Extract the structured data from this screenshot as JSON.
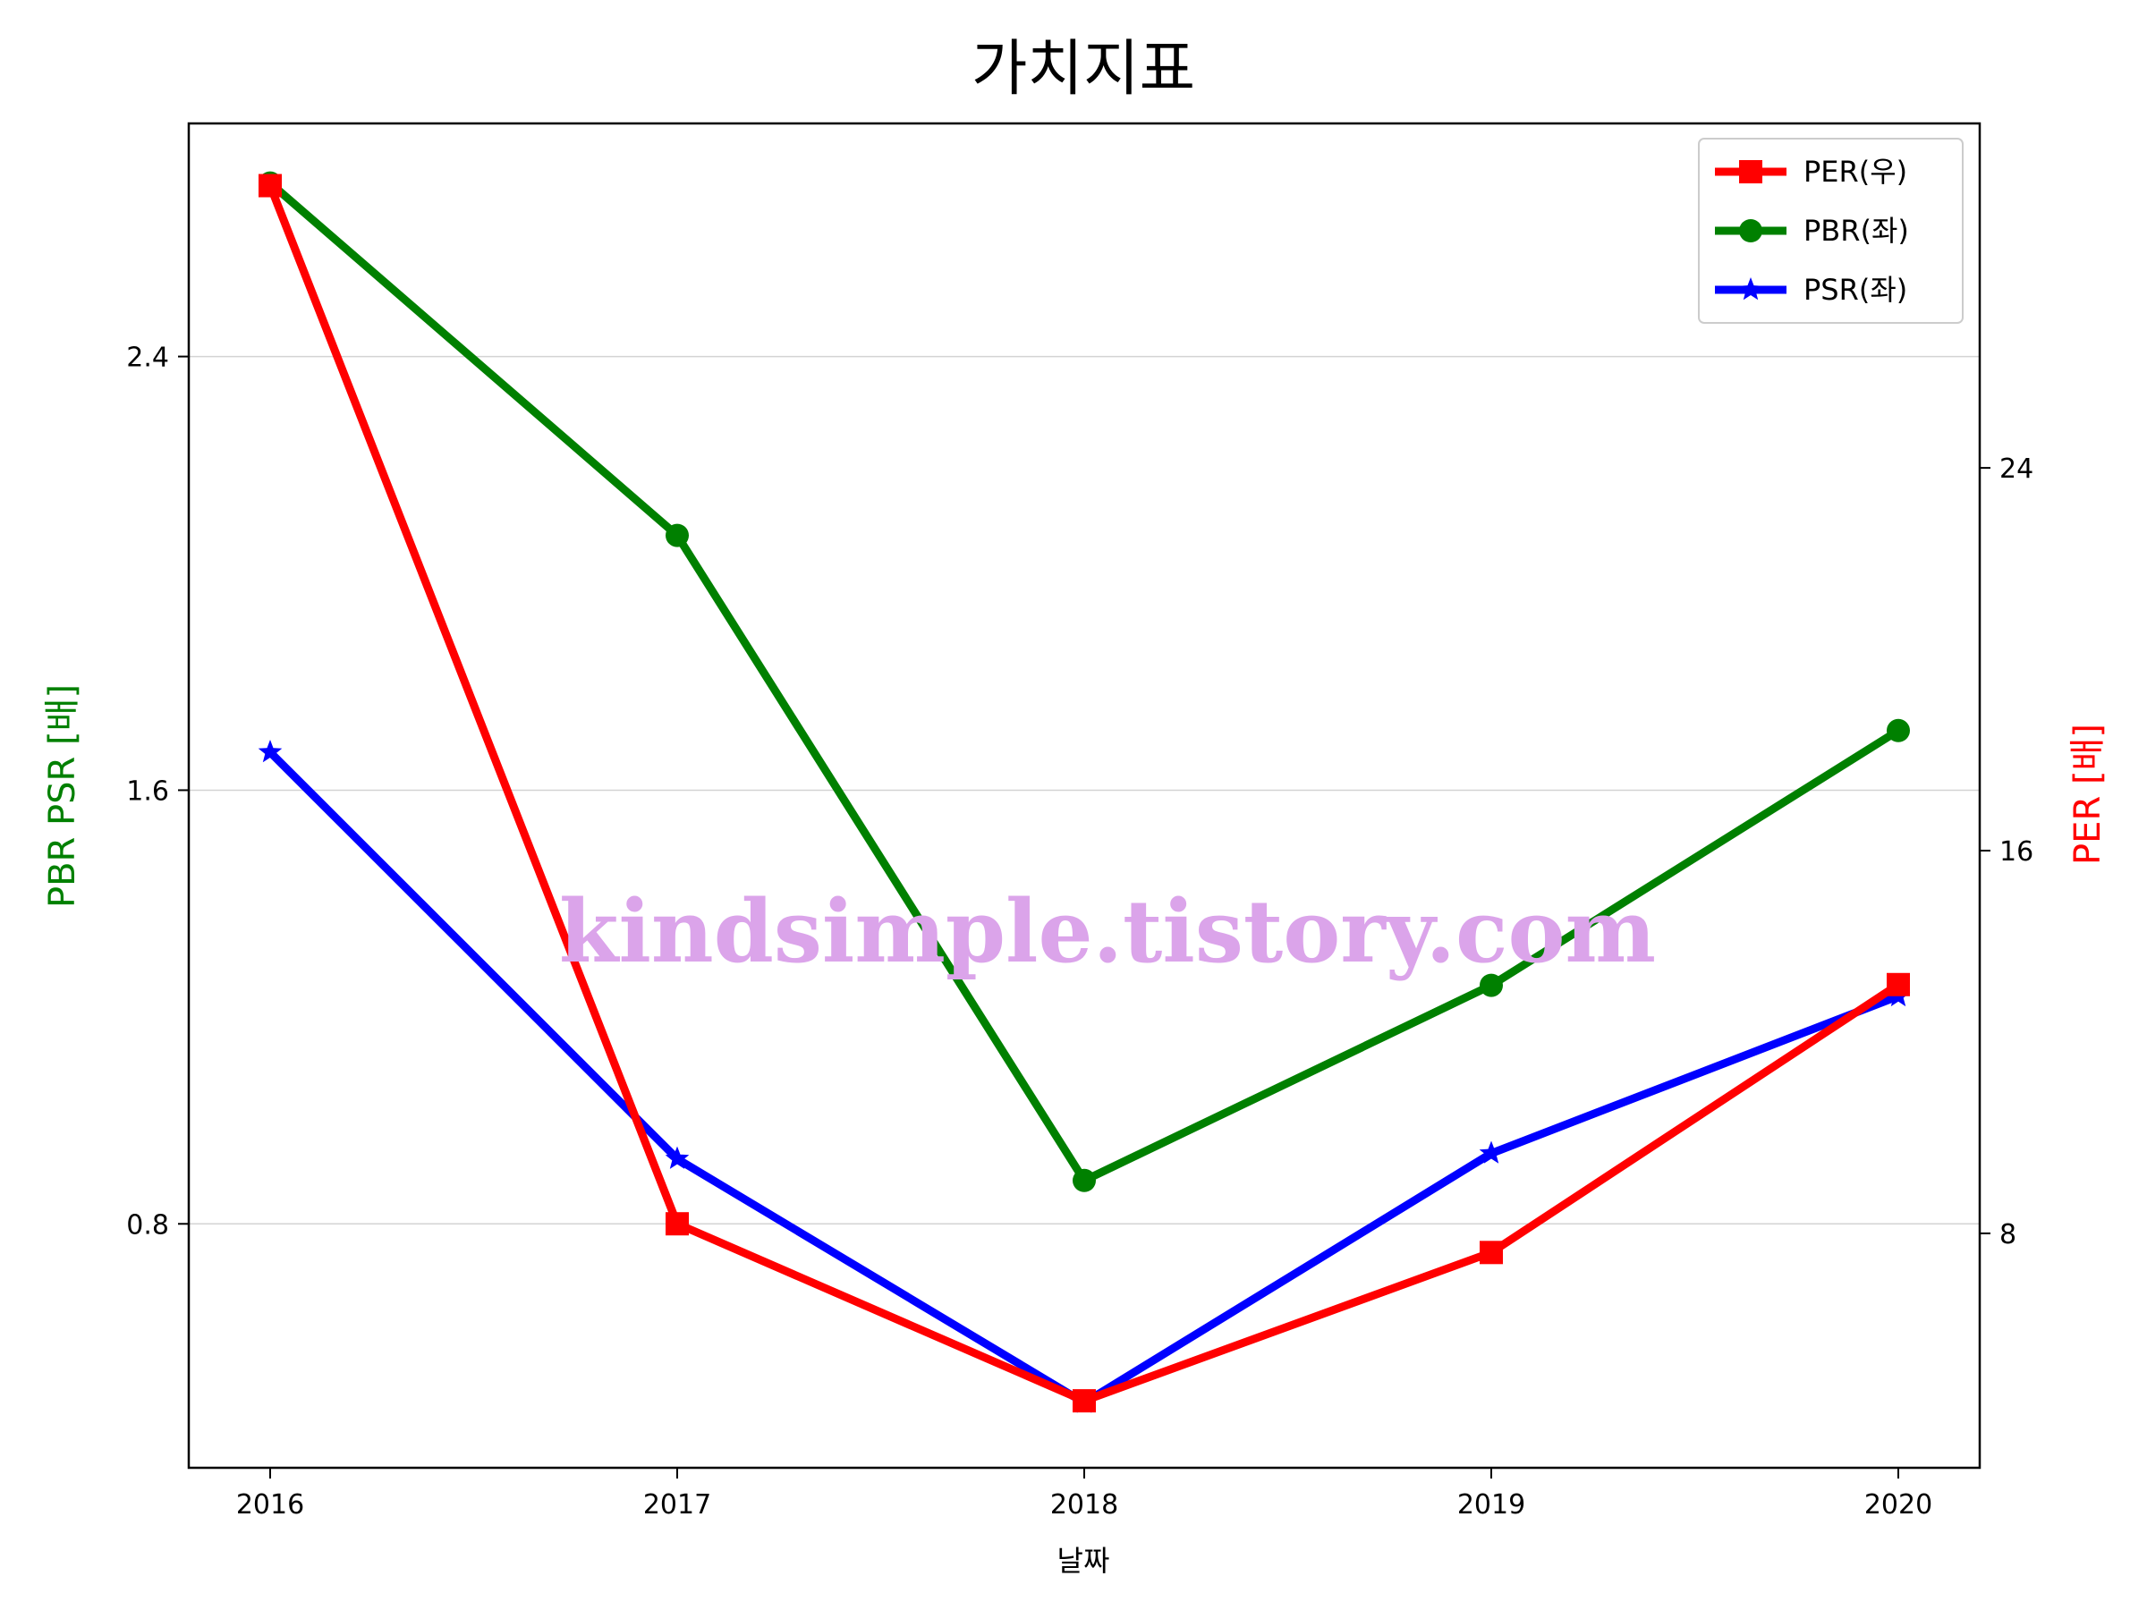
{
  "chart_data": {
    "type": "line",
    "title": "가치지표",
    "xlabel": "날짜",
    "ylabel_left": "PBR PSR [배]",
    "ylabel_right": "PER [배]",
    "categories": [
      "2016",
      "2017",
      "2018",
      "2019",
      "2020"
    ],
    "left_axis": {
      "ylim": [
        0.35,
        2.83
      ],
      "ticks": [
        0.8,
        1.6,
        2.4
      ],
      "tick_labels": [
        "0.8",
        "1.6",
        "2.4"
      ]
    },
    "right_axis": {
      "ylim": [
        3.1,
        31.2
      ],
      "ticks": [
        8,
        16,
        24
      ],
      "tick_labels": [
        "8",
        "16",
        "24"
      ]
    },
    "grid": "horizontal (left axis)",
    "legend_position": "top-right",
    "series": [
      {
        "name": "PER(우)",
        "axis": "right",
        "color": "#ff0000",
        "marker": "square",
        "values": [
          29.9,
          8.2,
          4.5,
          7.6,
          13.2
        ]
      },
      {
        "name": "PBR(좌)",
        "axis": "left",
        "color": "#008000",
        "marker": "circle",
        "values": [
          2.72,
          2.07,
          0.88,
          1.24,
          1.71
        ]
      },
      {
        "name": "PSR(좌)",
        "axis": "left",
        "color": "#0000ff",
        "marker": "star",
        "values": [
          1.67,
          0.92,
          0.47,
          0.93,
          1.22
        ]
      }
    ],
    "watermark": "kindsimple.tistory.com"
  }
}
